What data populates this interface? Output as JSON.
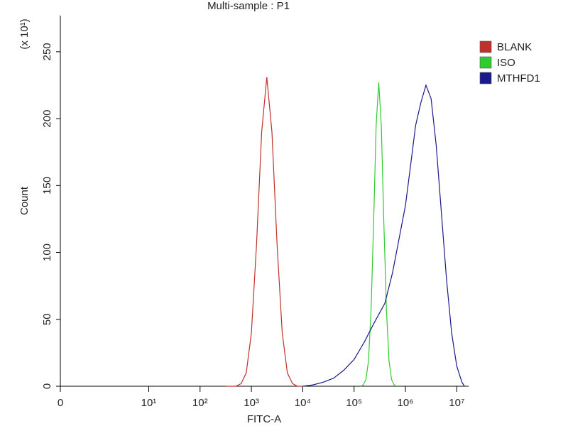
{
  "chart_data": {
    "type": "line",
    "title": "Multi-sample : P1",
    "x_label": "FITC-A",
    "y_label": "Count",
    "y_multiplier_label": "(x 10¹)",
    "xscale": "biexponential",
    "xlim": [
      0,
      17000000
    ],
    "xticks": [
      0,
      {
        "value": 10,
        "label": "10¹"
      },
      {
        "value": 100,
        "label": "10²"
      },
      {
        "value": 1000,
        "label": "10³"
      },
      {
        "value": 10000,
        "label": "10⁴"
      },
      {
        "value": 100000,
        "label": "10⁵"
      },
      {
        "value": 1000000,
        "label": "10⁶"
      },
      {
        "value": 10000000,
        "label": "10⁷"
      }
    ],
    "ylim": [
      0,
      277
    ],
    "yticks": [
      0,
      50,
      100,
      150,
      200,
      250
    ],
    "grid": false,
    "legend": "right",
    "series": [
      {
        "name": "BLANK",
        "color": "#c0302a",
        "x": [
          316,
          398,
          501,
          631,
          794,
          1000,
          1259,
          1585,
          1995,
          2512,
          3162,
          3981,
          5012,
          6310,
          7943,
          10000
        ],
        "values": [
          0,
          0,
          0,
          2,
          10,
          40,
          106,
          190,
          231,
          190,
          106,
          40,
          10,
          2,
          0,
          0
        ]
      },
      {
        "name": "ISO",
        "color": "#2ecc2e",
        "x": [
          135000,
          151000,
          170000,
          191000,
          214000,
          240000,
          269000,
          302000,
          339000,
          380000,
          427000,
          479000,
          537000,
          603000,
          676000
        ],
        "values": [
          0,
          1,
          5,
          19,
          57,
          122,
          195,
          227,
          195,
          122,
          57,
          19,
          5,
          1,
          0
        ]
      },
      {
        "name": "MTHFD1",
        "color": "#1a1a8c",
        "x": [
          10000,
          15800,
          25100,
          39800,
          63100,
          100000,
          158000,
          251000,
          398000,
          562000,
          794000,
          1000000,
          1260000,
          1580000,
          2000000,
          2510000,
          3160000,
          3980000,
          5010000,
          6310000,
          7940000,
          10000000,
          12600000,
          14100000
        ],
        "values": [
          0,
          1,
          3,
          6,
          12,
          20,
          33,
          48,
          62,
          85,
          115,
          135,
          165,
          195,
          212,
          225,
          215,
          180,
          130,
          80,
          40,
          15,
          3,
          0
        ]
      }
    ]
  }
}
